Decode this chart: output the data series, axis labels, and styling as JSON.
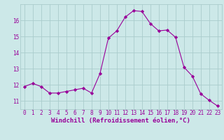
{
  "x": [
    0,
    1,
    2,
    3,
    4,
    5,
    6,
    7,
    8,
    9,
    10,
    11,
    12,
    13,
    14,
    15,
    16,
    17,
    18,
    19,
    20,
    21,
    22,
    23
  ],
  "y": [
    11.9,
    12.1,
    11.9,
    11.5,
    11.5,
    11.6,
    11.7,
    11.8,
    11.5,
    12.7,
    14.9,
    15.35,
    16.2,
    16.6,
    16.55,
    15.8,
    15.35,
    15.4,
    14.95,
    13.1,
    12.55,
    11.45,
    11.05,
    10.7
  ],
  "line_color": "#990099",
  "marker": "D",
  "marker_size": 2.2,
  "bg_color": "#cce8e8",
  "grid_color": "#aacccc",
  "xlabel": "Windchill (Refroidissement éolien,°C)",
  "ylabel": "",
  "ylim": [
    10.5,
    17.0
  ],
  "xlim": [
    -0.5,
    23.5
  ],
  "yticks": [
    11,
    12,
    13,
    14,
    15,
    16
  ],
  "xticks": [
    0,
    1,
    2,
    3,
    4,
    5,
    6,
    7,
    8,
    9,
    10,
    11,
    12,
    13,
    14,
    15,
    16,
    17,
    18,
    19,
    20,
    21,
    22,
    23
  ],
  "tick_color": "#990099",
  "label_color": "#990099",
  "label_fontsize": 6.5,
  "tick_fontsize": 5.5,
  "line_width": 0.8
}
